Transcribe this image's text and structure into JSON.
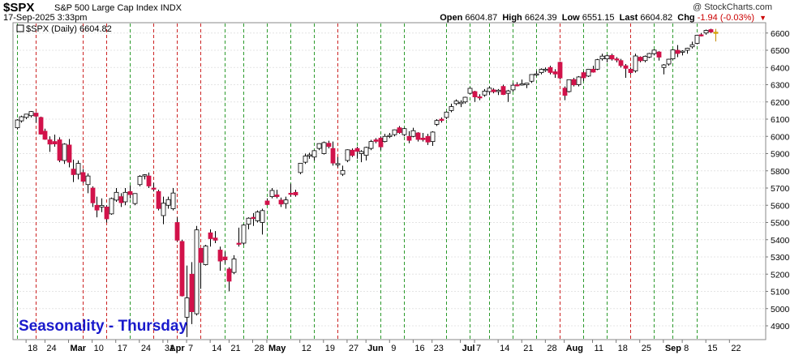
{
  "header": {
    "ticker": "$SPX",
    "name": "S&P 500 Large Cap Index",
    "exchange": "INDX",
    "datetime": "17-Sep-2025 3:33pm",
    "credit": "@ StockCharts.com",
    "open_label": "Open",
    "open": "6604.87",
    "high_label": "High",
    "high": "6624.39",
    "low_label": "Low",
    "low": "6551.15",
    "last_label": "Last",
    "last": "6604.82",
    "chg_label": "Chg",
    "chg": "-1.94 (-0.03%)",
    "chg_arrow": "▼"
  },
  "legend": {
    "text": "$SPX (Daily) 6604.82"
  },
  "annotation": {
    "text": "Seasonality - Thursday"
  },
  "colors": {
    "up_candle": "#ffffff",
    "down_candle": "#d2124a",
    "outline": "#000000",
    "thursday_line": "#2b9a2b",
    "month_marker": "#cc2222",
    "annotation": "#1a1acc"
  },
  "chart_data": {
    "type": "candlestick",
    "title": "$SPX (Daily) 6604.82",
    "ylim": [
      4820,
      6660
    ],
    "yticks": [
      4900,
      5000,
      5100,
      5200,
      5300,
      5400,
      5500,
      5600,
      5700,
      5800,
      5900,
      6000,
      6100,
      6200,
      6300,
      6400,
      6500,
      6600
    ],
    "xticks": [
      {
        "label": "18",
        "date": "2025-02-18"
      },
      {
        "label": "24",
        "date": "2025-02-24"
      },
      {
        "label": "Mar",
        "date": "2025-03-03"
      },
      {
        "label": "10",
        "date": "2025-03-10"
      },
      {
        "label": "17",
        "date": "2025-03-17"
      },
      {
        "label": "24",
        "date": "2025-03-24"
      },
      {
        "label": "31",
        "date": "2025-03-31"
      },
      {
        "label": "Apr",
        "date": "2025-04-01"
      },
      {
        "label": "7",
        "date": "2025-04-07"
      },
      {
        "label": "14",
        "date": "2025-04-14"
      },
      {
        "label": "21",
        "date": "2025-04-21"
      },
      {
        "label": "28",
        "date": "2025-04-28"
      },
      {
        "label": "May",
        "date": "2025-05-01"
      },
      {
        "label": "12",
        "date": "2025-05-12"
      },
      {
        "label": "19",
        "date": "2025-05-19"
      },
      {
        "label": "27",
        "date": "2025-05-27"
      },
      {
        "label": "Jun",
        "date": "2025-06-02"
      },
      {
        "label": "9",
        "date": "2025-06-09"
      },
      {
        "label": "16",
        "date": "2025-06-16"
      },
      {
        "label": "23",
        "date": "2025-06-23"
      },
      {
        "label": "Jul",
        "date": "2025-07-01"
      },
      {
        "label": "7",
        "date": "2025-07-07"
      },
      {
        "label": "14",
        "date": "2025-07-14"
      },
      {
        "label": "21",
        "date": "2025-07-21"
      },
      {
        "label": "28",
        "date": "2025-07-28"
      },
      {
        "label": "Aug",
        "date": "2025-08-01"
      },
      {
        "label": "11",
        "date": "2025-08-11"
      },
      {
        "label": "18",
        "date": "2025-08-18"
      },
      {
        "label": "25",
        "date": "2025-08-25"
      },
      {
        "label": "Sep",
        "date": "2025-09-02"
      },
      {
        "label": "8",
        "date": "2025-09-08"
      },
      {
        "label": "15",
        "date": "2025-09-15"
      },
      {
        "label": "22",
        "date": "2025-09-22"
      }
    ],
    "thursday_dates": [
      "2025-02-13",
      "2025-02-20",
      "2025-03-06",
      "2025-03-13",
      "2025-03-20",
      "2025-03-27",
      "2025-04-03",
      "2025-04-10",
      "2025-04-17",
      "2025-04-24",
      "2025-05-01",
      "2025-05-08",
      "2025-05-15",
      "2025-05-22",
      "2025-05-29",
      "2025-06-05",
      "2025-06-12",
      "2025-06-26",
      "2025-07-03",
      "2025-07-10",
      "2025-07-17",
      "2025-07-24",
      "2025-07-31",
      "2025-08-07",
      "2025-08-14",
      "2025-08-21",
      "2025-08-28",
      "2025-09-04",
      "2025-09-11"
    ],
    "red_thursdays": [
      "2025-02-20",
      "2025-03-06",
      "2025-03-13",
      "2025-03-27",
      "2025-04-03",
      "2025-04-10",
      "2025-05-22",
      "2025-07-31",
      "2025-08-21"
    ],
    "ohlc": [
      [
        "2025-02-13",
        6050,
        6100,
        6040,
        6095
      ],
      [
        "2025-02-14",
        6090,
        6120,
        6080,
        6114
      ],
      [
        "2025-02-18",
        6110,
        6130,
        6100,
        6129
      ],
      [
        "2025-02-19",
        6120,
        6147,
        6110,
        6144
      ],
      [
        "2025-02-20",
        6135,
        6140,
        6080,
        6117
      ],
      [
        "2025-02-21",
        6110,
        6115,
        6010,
        6013
      ],
      [
        "2025-02-24",
        6030,
        6045,
        5980,
        5983
      ],
      [
        "2025-02-25",
        5980,
        6000,
        5910,
        5955
      ],
      [
        "2025-02-26",
        5970,
        6010,
        5940,
        5956
      ],
      [
        "2025-02-27",
        5980,
        5995,
        5850,
        5861
      ],
      [
        "2025-02-28",
        5860,
        5960,
        5840,
        5955
      ],
      [
        "2025-03-03",
        5950,
        5985,
        5820,
        5850
      ],
      [
        "2025-03-04",
        5810,
        5865,
        5735,
        5778
      ],
      [
        "2025-03-05",
        5780,
        5860,
        5750,
        5843
      ],
      [
        "2025-03-06",
        5790,
        5810,
        5730,
        5739
      ],
      [
        "2025-03-07",
        5720,
        5785,
        5670,
        5770
      ],
      [
        "2025-03-10",
        5700,
        5710,
        5590,
        5614
      ],
      [
        "2025-03-11",
        5600,
        5650,
        5530,
        5572
      ],
      [
        "2025-03-12",
        5590,
        5640,
        5560,
        5599
      ],
      [
        "2025-03-13",
        5590,
        5600,
        5500,
        5521
      ],
      [
        "2025-03-14",
        5550,
        5645,
        5545,
        5639
      ],
      [
        "2025-03-17",
        5630,
        5700,
        5620,
        5675
      ],
      [
        "2025-03-18",
        5650,
        5670,
        5590,
        5615
      ],
      [
        "2025-03-19",
        5620,
        5700,
        5600,
        5675
      ],
      [
        "2025-03-20",
        5680,
        5715,
        5640,
        5662
      ],
      [
        "2025-03-21",
        5610,
        5670,
        5600,
        5668
      ],
      [
        "2025-03-24",
        5720,
        5775,
        5710,
        5768
      ],
      [
        "2025-03-25",
        5770,
        5780,
        5750,
        5777
      ],
      [
        "2025-03-26",
        5770,
        5790,
        5700,
        5712
      ],
      [
        "2025-03-27",
        5700,
        5730,
        5680,
        5693
      ],
      [
        "2025-03-28",
        5680,
        5690,
        5570,
        5581
      ],
      [
        "2025-03-31",
        5540,
        5650,
        5490,
        5612
      ],
      [
        "2025-04-01",
        5600,
        5650,
        5580,
        5633
      ],
      [
        "2025-04-02",
        5580,
        5700,
        5570,
        5671
      ],
      [
        "2025-04-03",
        5500,
        5530,
        5390,
        5397
      ],
      [
        "2025-04-04",
        5390,
        5400,
        5070,
        5074
      ],
      [
        "2025-04-07",
        4950,
        5250,
        4835,
        5062
      ],
      [
        "2025-04-08",
        5200,
        5270,
        4910,
        4982
      ],
      [
        "2025-04-09",
        4970,
        5480,
        4960,
        5457
      ],
      [
        "2025-04-10",
        5350,
        5350,
        5115,
        5268
      ],
      [
        "2025-04-11",
        5255,
        5370,
        5250,
        5363
      ],
      [
        "2025-04-14",
        5440,
        5460,
        5360,
        5406
      ],
      [
        "2025-04-15",
        5410,
        5450,
        5380,
        5397
      ],
      [
        "2025-04-16",
        5340,
        5360,
        5220,
        5276
      ],
      [
        "2025-04-17",
        5300,
        5330,
        5260,
        5283
      ],
      [
        "2025-04-21",
        5230,
        5240,
        5100,
        5159
      ],
      [
        "2025-04-22",
        5210,
        5310,
        5200,
        5288
      ],
      [
        "2025-04-23",
        5380,
        5470,
        5360,
        5376
      ],
      [
        "2025-04-24",
        5380,
        5490,
        5370,
        5485
      ],
      [
        "2025-04-25",
        5490,
        5530,
        5460,
        5525
      ],
      [
        "2025-04-28",
        5530,
        5555,
        5480,
        5529
      ],
      [
        "2025-04-29",
        5510,
        5570,
        5500,
        5561
      ],
      [
        "2025-04-30",
        5500,
        5580,
        5430,
        5569
      ],
      [
        "2025-05-01",
        5625,
        5640,
        5600,
        5604
      ],
      [
        "2025-05-02",
        5650,
        5700,
        5640,
        5686
      ],
      [
        "2025-05-05",
        5660,
        5690,
        5640,
        5650
      ],
      [
        "2025-05-06",
        5630,
        5645,
        5590,
        5607
      ],
      [
        "2025-05-07",
        5610,
        5650,
        5580,
        5631
      ],
      [
        "2025-05-08",
        5670,
        5725,
        5650,
        5664
      ],
      [
        "2025-05-09",
        5675,
        5690,
        5650,
        5660
      ],
      [
        "2025-05-12",
        5790,
        5845,
        5780,
        5844
      ],
      [
        "2025-05-13",
        5850,
        5900,
        5840,
        5886
      ],
      [
        "2025-05-14",
        5890,
        5905,
        5870,
        5893
      ],
      [
        "2025-05-15",
        5880,
        5920,
        5860,
        5917
      ],
      [
        "2025-05-16",
        5930,
        5960,
        5920,
        5958
      ],
      [
        "2025-05-19",
        5900,
        5970,
        5895,
        5964
      ],
      [
        "2025-05-20",
        5960,
        5975,
        5930,
        5941
      ],
      [
        "2025-05-21",
        5930,
        5970,
        5830,
        5845
      ],
      [
        "2025-05-22",
        5840,
        5880,
        5820,
        5842
      ],
      [
        "2025-05-23",
        5780,
        5830,
        5770,
        5802
      ],
      [
        "2025-05-27",
        5860,
        5925,
        5850,
        5922
      ],
      [
        "2025-05-28",
        5920,
        5930,
        5880,
        5889
      ],
      [
        "2025-05-29",
        5930,
        5940,
        5870,
        5913
      ],
      [
        "2025-05-30",
        5900,
        5920,
        5850,
        5912
      ],
      [
        "2025-06-02",
        5890,
        5940,
        5860,
        5936
      ],
      [
        "2025-06-03",
        5930,
        5980,
        5920,
        5970
      ],
      [
        "2025-06-04",
        5980,
        5990,
        5960,
        5971
      ],
      [
        "2025-06-05",
        5990,
        6000,
        5920,
        5939
      ],
      [
        "2025-06-06",
        5970,
        6015,
        5965,
        6000
      ],
      [
        "2025-06-09",
        6000,
        6020,
        5990,
        6006
      ],
      [
        "2025-06-10",
        6010,
        6040,
        6000,
        6038
      ],
      [
        "2025-06-11",
        6050,
        6060,
        6015,
        6022
      ],
      [
        "2025-06-12",
        6010,
        6050,
        6000,
        6045
      ],
      [
        "2025-06-13",
        6000,
        6030,
        5960,
        5977
      ],
      [
        "2025-06-16",
        6000,
        6050,
        5995,
        6033
      ],
      [
        "2025-06-17",
        6020,
        6025,
        5970,
        5982
      ],
      [
        "2025-06-18",
        5990,
        6020,
        5970,
        5981
      ],
      [
        "2025-06-20",
        6000,
        6015,
        5950,
        5967
      ],
      [
        "2025-06-23",
        5970,
        6030,
        5945,
        6025
      ],
      [
        "2025-06-24",
        6070,
        6100,
        6060,
        6092
      ],
      [
        "2025-06-25",
        6100,
        6110,
        6080,
        6092
      ],
      [
        "2025-06-26",
        6110,
        6145,
        6100,
        6141
      ],
      [
        "2025-06-27",
        6150,
        6190,
        6140,
        6173
      ],
      [
        "2025-06-30",
        6190,
        6215,
        6180,
        6205
      ],
      [
        "2025-07-01",
        6190,
        6210,
        6170,
        6198
      ],
      [
        "2025-07-02",
        6200,
        6230,
        6190,
        6227
      ],
      [
        "2025-07-03",
        6250,
        6285,
        6245,
        6279
      ],
      [
        "2025-07-07",
        6260,
        6265,
        6200,
        6229
      ],
      [
        "2025-07-08",
        6230,
        6245,
        6210,
        6226
      ],
      [
        "2025-07-09",
        6240,
        6275,
        6230,
        6263
      ],
      [
        "2025-07-10",
        6260,
        6290,
        6240,
        6280
      ],
      [
        "2025-07-11",
        6270,
        6280,
        6250,
        6259
      ],
      [
        "2025-07-14",
        6260,
        6275,
        6240,
        6268
      ],
      [
        "2025-07-15",
        6290,
        6300,
        6240,
        6243
      ],
      [
        "2025-07-16",
        6250,
        6270,
        6200,
        6264
      ],
      [
        "2025-07-17",
        6270,
        6310,
        6260,
        6297
      ],
      [
        "2025-07-18",
        6300,
        6315,
        6290,
        6297
      ],
      [
        "2025-07-21",
        6300,
        6330,
        6295,
        6305
      ],
      [
        "2025-07-22",
        6300,
        6310,
        6280,
        6309
      ],
      [
        "2025-07-23",
        6320,
        6360,
        6310,
        6359
      ],
      [
        "2025-07-24",
        6360,
        6380,
        6350,
        6363
      ],
      [
        "2025-07-25",
        6370,
        6395,
        6360,
        6389
      ],
      [
        "2025-07-28",
        6390,
        6400,
        6375,
        6390
      ],
      [
        "2025-07-29",
        6400,
        6410,
        6360,
        6371
      ],
      [
        "2025-07-30",
        6375,
        6390,
        6340,
        6362
      ],
      [
        "2025-07-31",
        6430,
        6435,
        6330,
        6339
      ],
      [
        "2025-08-01",
        6280,
        6290,
        6210,
        6238
      ],
      [
        "2025-08-04",
        6260,
        6330,
        6255,
        6329
      ],
      [
        "2025-08-05",
        6330,
        6340,
        6290,
        6299
      ],
      [
        "2025-08-06",
        6300,
        6350,
        6290,
        6345
      ],
      [
        "2025-08-07",
        6370,
        6380,
        6320,
        6340
      ],
      [
        "2025-08-08",
        6350,
        6390,
        6345,
        6389
      ],
      [
        "2025-08-11",
        6390,
        6410,
        6370,
        6373
      ],
      [
        "2025-08-12",
        6390,
        6450,
        6385,
        6445
      ],
      [
        "2025-08-13",
        6450,
        6480,
        6440,
        6466
      ],
      [
        "2025-08-14",
        6450,
        6475,
        6430,
        6468
      ],
      [
        "2025-08-15",
        6470,
        6480,
        6440,
        6449
      ],
      [
        "2025-08-18",
        6450,
        6460,
        6430,
        6449
      ],
      [
        "2025-08-19",
        6440,
        6450,
        6400,
        6411
      ],
      [
        "2025-08-20",
        6410,
        6420,
        6340,
        6395
      ],
      [
        "2025-08-21",
        6390,
        6400,
        6360,
        6370
      ],
      [
        "2025-08-22",
        6380,
        6480,
        6370,
        6467
      ],
      [
        "2025-08-25",
        6460,
        6465,
        6430,
        6439
      ],
      [
        "2025-08-26",
        6440,
        6470,
        6430,
        6465
      ],
      [
        "2025-08-27",
        6460,
        6485,
        6455,
        6481
      ],
      [
        "2025-08-28",
        6480,
        6505,
        6470,
        6501
      ],
      [
        "2025-08-29",
        6490,
        6495,
        6440,
        6460
      ],
      [
        "2025-09-02",
        6400,
        6420,
        6360,
        6415
      ],
      [
        "2025-09-03",
        6420,
        6450,
        6410,
        6448
      ],
      [
        "2025-09-04",
        6450,
        6505,
        6445,
        6502
      ],
      [
        "2025-09-05",
        6500,
        6530,
        6460,
        6481
      ],
      [
        "2025-09-08",
        6490,
        6500,
        6470,
        6495
      ],
      [
        "2025-09-09",
        6500,
        6515,
        6480,
        6512
      ],
      [
        "2025-09-10",
        6520,
        6550,
        6510,
        6532
      ],
      [
        "2025-09-11",
        6540,
        6590,
        6535,
        6587
      ],
      [
        "2025-09-12",
        6590,
        6600,
        6580,
        6584
      ],
      [
        "2025-09-15",
        6600,
        6620,
        6590,
        6615
      ],
      [
        "2025-09-16",
        6620,
        6625,
        6600,
        6606
      ],
      [
        "2025-09-17",
        6604.87,
        6624.39,
        6551.15,
        6604.82
      ]
    ]
  }
}
